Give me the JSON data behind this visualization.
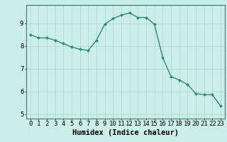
{
  "x": [
    0,
    1,
    2,
    3,
    4,
    5,
    6,
    7,
    8,
    9,
    10,
    11,
    12,
    13,
    14,
    15,
    16,
    17,
    18,
    19,
    20,
    21,
    22,
    23
  ],
  "y": [
    8.5,
    8.35,
    8.35,
    8.25,
    8.1,
    7.95,
    7.85,
    7.8,
    8.25,
    8.95,
    9.2,
    9.35,
    9.45,
    9.25,
    9.25,
    8.95,
    7.5,
    6.65,
    6.5,
    6.3,
    5.9,
    5.85,
    5.85,
    5.35
  ],
  "xlabel": "Humidex (Indice chaleur)",
  "line_color": "#2e8b70",
  "marker_color": "#2e8b70",
  "bg_color": "#cceee8",
  "grid_color": "#aad4cc",
  "xlim": [
    -0.5,
    23.5
  ],
  "ylim": [
    4.8,
    9.8
  ],
  "yticks": [
    5,
    6,
    7,
    8,
    9
  ],
  "xticks": [
    0,
    1,
    2,
    3,
    4,
    5,
    6,
    7,
    8,
    9,
    10,
    11,
    12,
    13,
    14,
    15,
    16,
    17,
    18,
    19,
    20,
    21,
    22,
    23
  ],
  "xlabel_fontsize": 7.5,
  "tick_fontsize": 6.5,
  "linewidth": 1.0,
  "markersize": 2.0
}
